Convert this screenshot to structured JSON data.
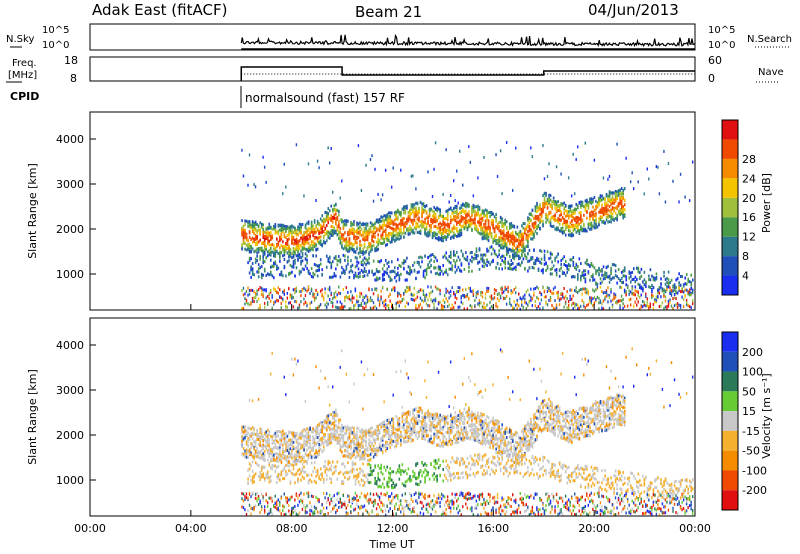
{
  "header": {
    "station": "Adak East (fitACF)",
    "beam": "Beam 21",
    "date": "04/Jun/2013"
  },
  "panel_labels": {
    "nsky": "N.Sky",
    "nsearch": "N.Search",
    "freq_line1": "Freq.",
    "freq_line2": "[MHz]",
    "nave": "Nave",
    "cpid": "CPID",
    "cpid_text": "normalsound (fast) 157 RF"
  },
  "noise_axes": {
    "left_top": "10^5",
    "left_bottom": "10^0",
    "right_top": "10^5",
    "right_bottom": "10^0"
  },
  "freq_axes": {
    "left_ticks": [
      "18",
      "8"
    ],
    "right_ticks": [
      "60",
      "0"
    ]
  },
  "time_axis": {
    "label": "Time UT",
    "ticks": [
      "00:00",
      "04:00",
      "08:00",
      "12:00",
      "16:00",
      "20:00",
      "00:00"
    ]
  },
  "range_axis": {
    "label": "Slant Range [km]",
    "ticks": [
      "1000",
      "2000",
      "3000",
      "4000"
    ]
  },
  "power_colorbar": {
    "label": "Power [dB]",
    "ticks": [
      "4",
      "8",
      "12",
      "16",
      "20",
      "24",
      "28"
    ],
    "colors": [
      "#1a2ef0",
      "#1f4fb8",
      "#2d7a8c",
      "#4a9a4a",
      "#9ec03a",
      "#f5c400",
      "#f58c00",
      "#f04a00",
      "#e01010"
    ]
  },
  "velocity_colorbar": {
    "label": "Velocity [m s⁻¹]",
    "ticks": [
      "200",
      "100",
      "50",
      "15",
      "-15",
      "-50",
      "-100",
      "-200"
    ],
    "colors": [
      "#1a2ef0",
      "#1f4fb8",
      "#2a7a5a",
      "#66cc33",
      "#c8c8c8",
      "#f5b030",
      "#f58c00",
      "#f04a00",
      "#e01010"
    ]
  },
  "chart_data": {
    "type": "heatmap",
    "title": "Adak East (fitACF) Beam 21 04/Jun/2013",
    "xlabel": "Time UT",
    "ylabel": "Slant Range [km]",
    "xlim": [
      0,
      24
    ],
    "ylim": [
      200,
      4600
    ],
    "data_start_hour": 6,
    "freq_segments": [
      {
        "start": 6,
        "end": 10,
        "freq": 15
      },
      {
        "start": 10,
        "end": 18,
        "freq": 11
      },
      {
        "start": 18,
        "end": 24,
        "freq": 13
      }
    ],
    "power_bands": [
      {
        "t": [
          6,
          7,
          8,
          9,
          9.7,
          10,
          11,
          12,
          13,
          14,
          15,
          16,
          17,
          18,
          19,
          20,
          21
        ],
        "r": [
          1900,
          1800,
          1750,
          1900,
          2300,
          1900,
          1800,
          2100,
          2300,
          2100,
          2300,
          2050,
          1700,
          2500,
          2200,
          2400,
          2600
        ],
        "peak_db": 28
      },
      {
        "t": [
          10,
          12,
          14,
          16,
          18,
          20,
          22,
          23.5
        ],
        "r": [
          1200,
          1100,
          1250,
          1400,
          1300,
          1050,
          900,
          800
        ],
        "peak_db": 10
      }
    ],
    "velocity_regions": [
      {
        "t_range": [
          11,
          14
        ],
        "r_range": [
          850,
          1400
        ],
        "velocity": 30
      },
      {
        "t_range": [
          6,
          22
        ],
        "r_range": [
          1700,
          2500
        ],
        "velocity": 0
      }
    ]
  }
}
